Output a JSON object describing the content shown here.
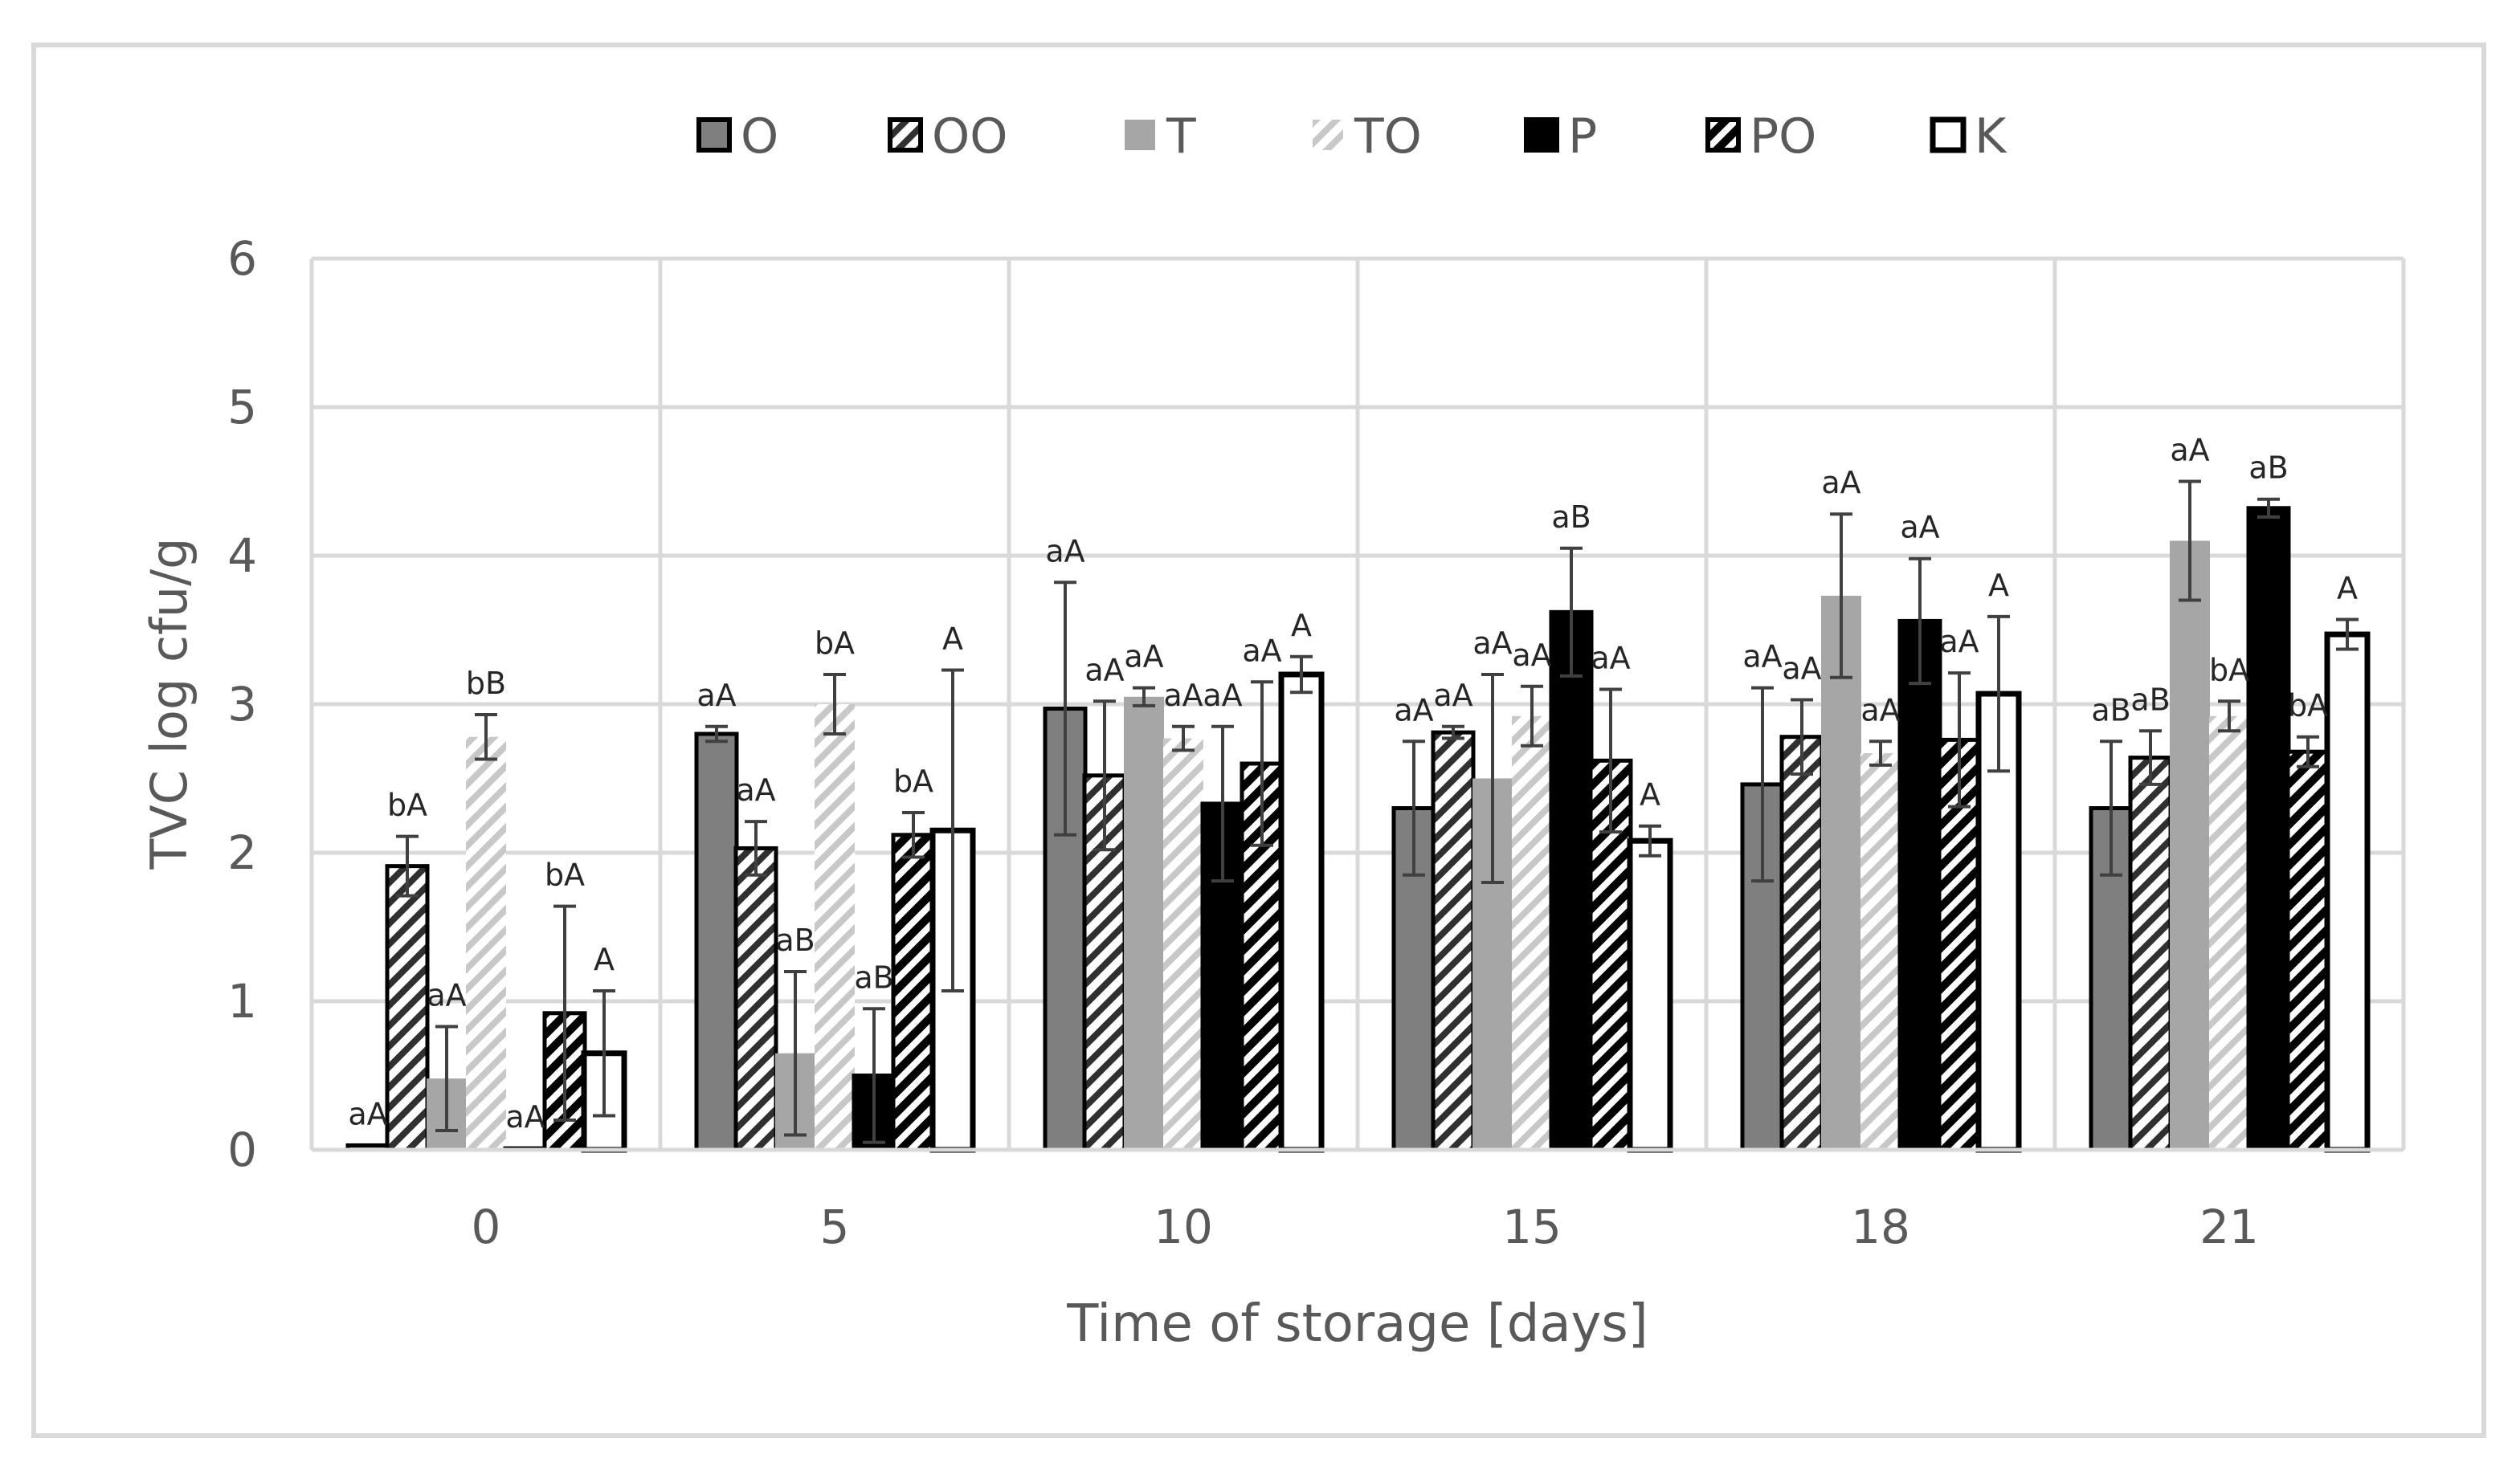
{
  "chart_data": {
    "type": "bar",
    "title": "",
    "xlabel": "Time of storage [days]",
    "ylabel": "TVC log cfu/g",
    "ylim": [
      0,
      6
    ],
    "yticks": [
      0,
      1,
      2,
      3,
      4,
      5,
      6
    ],
    "grid": true,
    "legend_position": "top",
    "categories": [
      "0",
      "5",
      "10",
      "15",
      "18",
      "21"
    ],
    "series": [
      {
        "name": "O",
        "fill": "solid",
        "color": "#7f7f7f",
        "values": [
          0.03,
          2.8,
          2.97,
          2.3,
          2.46,
          2.3
        ],
        "errors": [
          0,
          0.05,
          0.85,
          0.45,
          0.65,
          0.45
        ],
        "labels": [
          "aA",
          "aA",
          "aA",
          "aA",
          "aA",
          "aB"
        ]
      },
      {
        "name": "OO",
        "fill": "hatch-dark",
        "color": "#404040",
        "values": [
          1.91,
          2.03,
          2.52,
          2.81,
          2.78,
          2.64
        ],
        "errors": [
          0.2,
          0.18,
          0.5,
          0.04,
          0.25,
          0.18
        ],
        "labels": [
          "bA",
          "aA",
          "aA",
          "aA",
          "aA",
          "aB"
        ]
      },
      {
        "name": "T",
        "fill": "solid",
        "color": "#a6a6a6",
        "values": [
          0.48,
          0.65,
          3.05,
          2.5,
          3.73,
          4.1
        ],
        "errors": [
          0.35,
          0.55,
          0.06,
          0.7,
          0.55,
          0.4
        ],
        "labels": [
          "aA",
          "aB",
          "aA",
          "aA",
          "aA",
          "aA"
        ]
      },
      {
        "name": "TO",
        "fill": "hatch-light",
        "color": "#c8c8c8",
        "values": [
          2.78,
          3.0,
          2.77,
          2.92,
          2.67,
          2.92
        ],
        "errors": [
          0.15,
          0.2,
          0.08,
          0.2,
          0.08,
          0.1
        ],
        "labels": [
          "bB",
          "bA",
          "aA",
          "aA",
          "aA",
          "bA"
        ]
      },
      {
        "name": "P",
        "fill": "solid",
        "color": "#000000",
        "values": [
          0.01,
          0.5,
          2.33,
          3.62,
          3.56,
          4.32
        ],
        "errors": [
          0,
          0.45,
          0.52,
          0.43,
          0.42,
          0.06
        ],
        "labels": [
          "aA",
          "aB",
          "aA",
          "aB",
          "aA",
          "aB"
        ]
      },
      {
        "name": "PO",
        "fill": "hatch-black",
        "color": "#000000",
        "values": [
          0.92,
          2.12,
          2.6,
          2.62,
          2.76,
          2.68
        ],
        "errors": [
          0.72,
          0.15,
          0.55,
          0.48,
          0.45,
          0.1
        ],
        "labels": [
          "bA",
          "bA",
          "aA",
          "aA",
          "aA",
          "bA"
        ]
      },
      {
        "name": "K",
        "fill": "outline",
        "color": "#ffffff",
        "values": [
          0.65,
          2.15,
          3.2,
          2.08,
          3.07,
          3.47
        ],
        "errors": [
          0.42,
          1.08,
          0.12,
          0.1,
          0.52,
          0.1
        ],
        "labels": [
          "A",
          "A",
          "A",
          "A",
          "A",
          "A"
        ]
      }
    ]
  }
}
